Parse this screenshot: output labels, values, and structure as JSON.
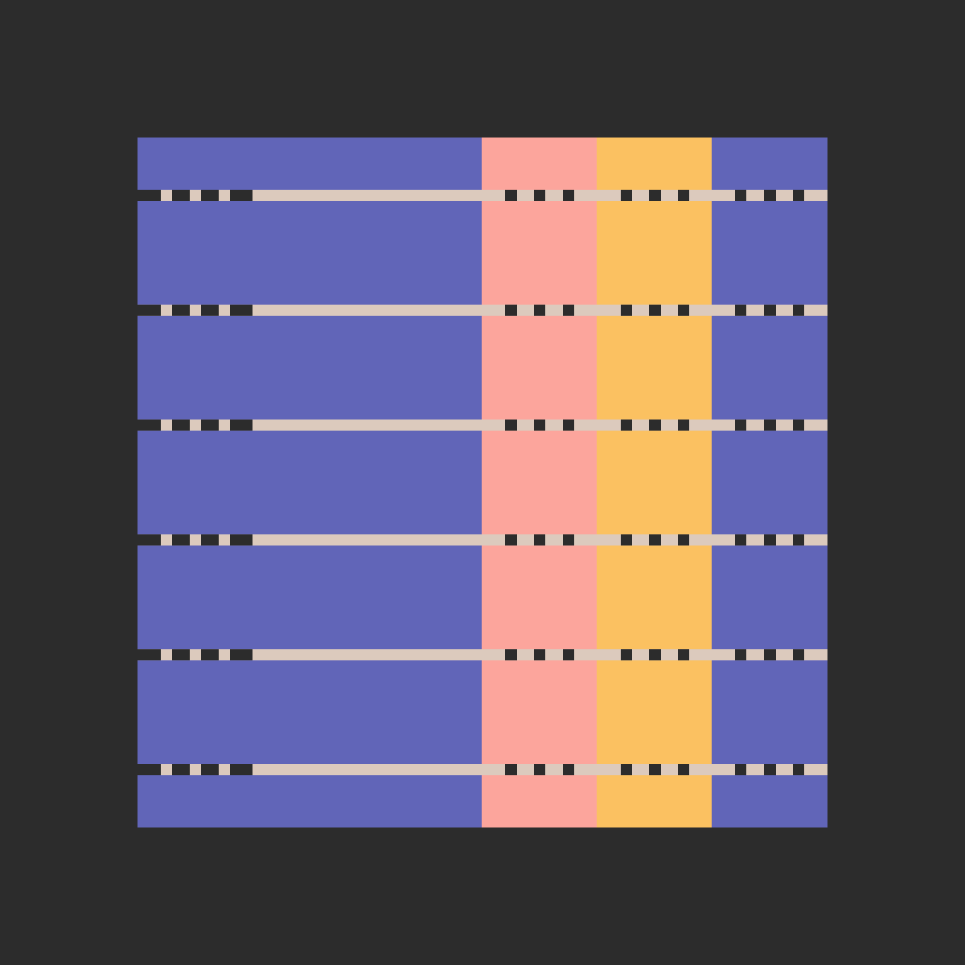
{
  "colors": {
    "background": "#2c2c2c",
    "blue": "#6165b8",
    "pink": "#fca59c",
    "yellow": "#fbc161",
    "stripe_light": "#dccabd",
    "stripe_dark": "#2c2c2c"
  },
  "columns": [
    "blue",
    "pink",
    "yellow",
    "blue"
  ],
  "horizontal_stripe_count": 6
}
